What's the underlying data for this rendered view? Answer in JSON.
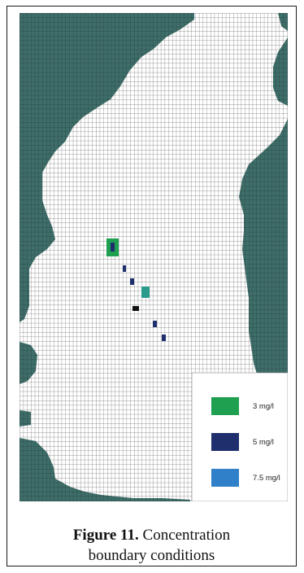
{
  "figure": {
    "label": "Figure 11.",
    "caption_line1": "Concentration",
    "caption_line2": "boundary conditions"
  },
  "colors": {
    "land": "#3d6e69",
    "water": "#ffffff",
    "grid_line": "#2a2a2a"
  },
  "legend": {
    "items": [
      {
        "label": "3  mg/l",
        "color": "#1fa050"
      },
      {
        "label": "5 mg/l",
        "color": "#1f2f6e"
      },
      {
        "label": "7.5 mg/l",
        "color": "#2f80c8"
      }
    ]
  }
}
